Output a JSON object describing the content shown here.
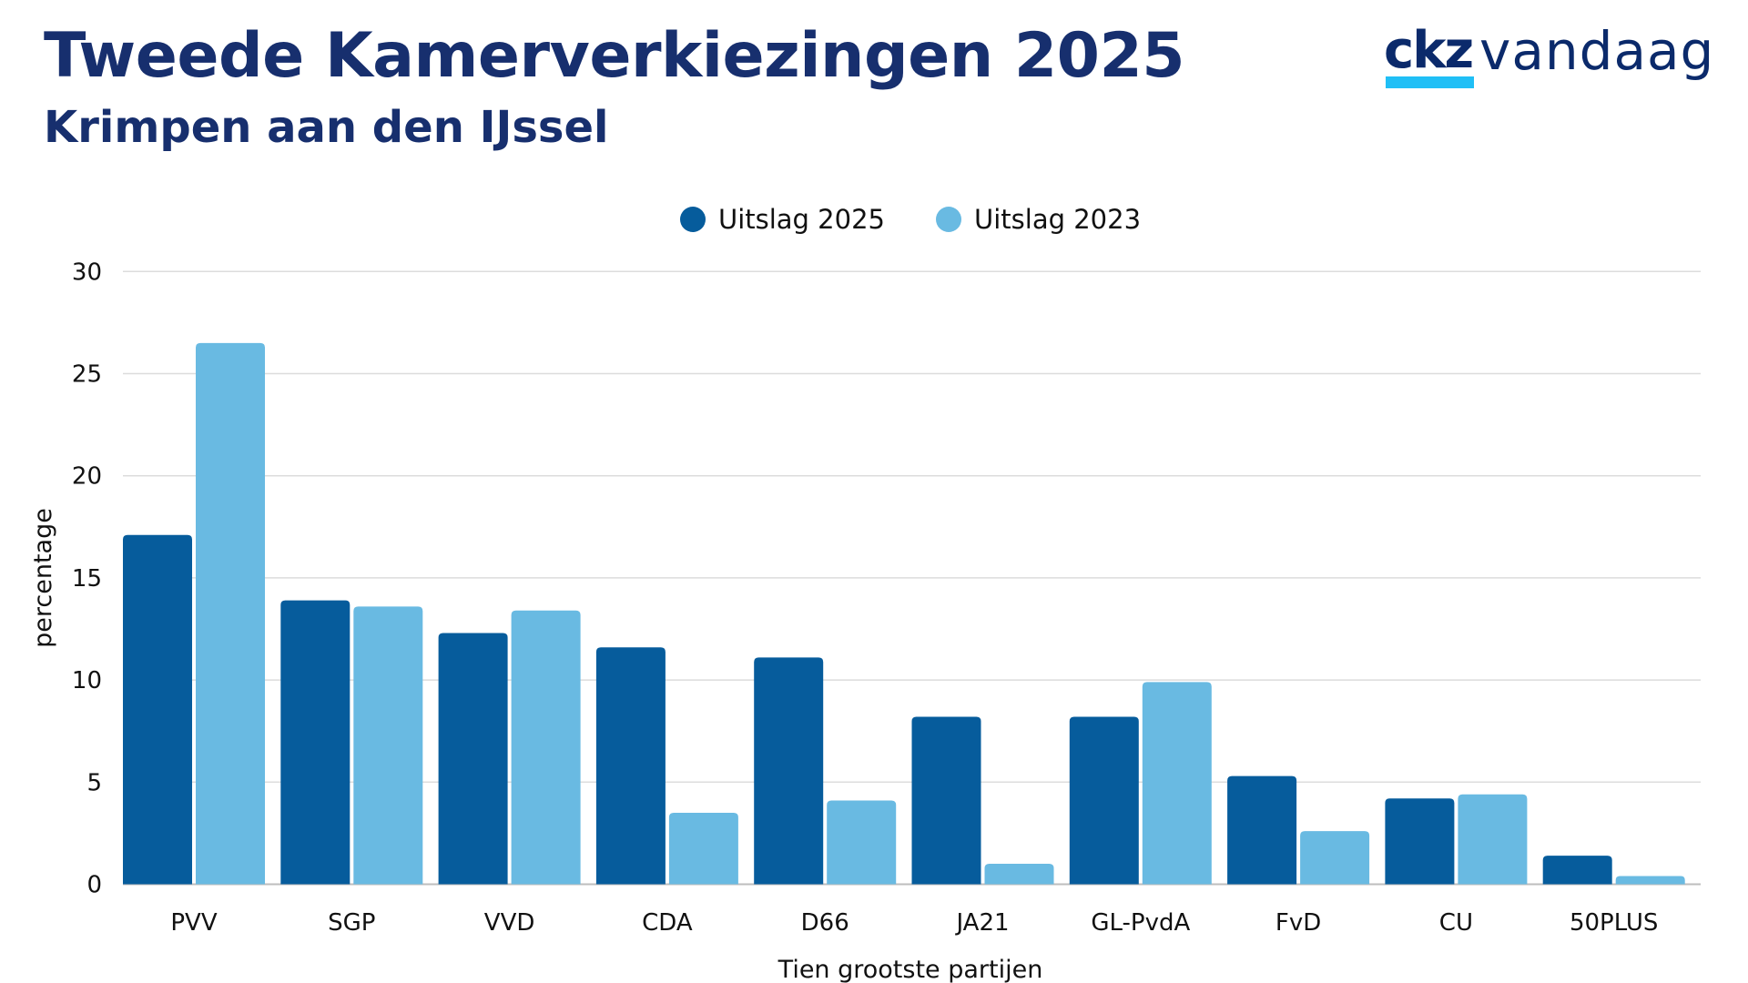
{
  "header": {
    "title": "Tweede Kamerverkiezingen 2025",
    "subtitle": "Krimpen aan den IJssel"
  },
  "logo": {
    "brand_bold": "ckz",
    "brand_light": "vandaag",
    "colors": {
      "text": "#0b2a6b",
      "underline": "#20bff6"
    }
  },
  "chart_data": {
    "type": "bar",
    "title": "Tweede Kamerverkiezingen 2025",
    "subtitle": "Krimpen aan den IJssel",
    "xlabel": "Tien grootste partijen",
    "ylabel": "percentage",
    "ylim": [
      0,
      30
    ],
    "yticks": [
      0,
      5,
      10,
      15,
      20,
      25,
      30
    ],
    "grid": true,
    "legend_position": "top-center",
    "categories": [
      "PVV",
      "SGP",
      "VVD",
      "CDA",
      "D66",
      "JA21",
      "GL-PvdA",
      "FvD",
      "CU",
      "50PLUS"
    ],
    "series": [
      {
        "name": "Uitslag 2025",
        "color": "#065c9c",
        "values": [
          17.1,
          13.9,
          12.3,
          11.6,
          11.1,
          8.2,
          8.2,
          5.3,
          4.2,
          1.4
        ]
      },
      {
        "name": "Uitslag 2023",
        "color": "#69bae2",
        "values": [
          26.5,
          13.6,
          13.4,
          3.5,
          4.1,
          1.0,
          9.9,
          2.6,
          4.4,
          0.4
        ]
      }
    ]
  }
}
